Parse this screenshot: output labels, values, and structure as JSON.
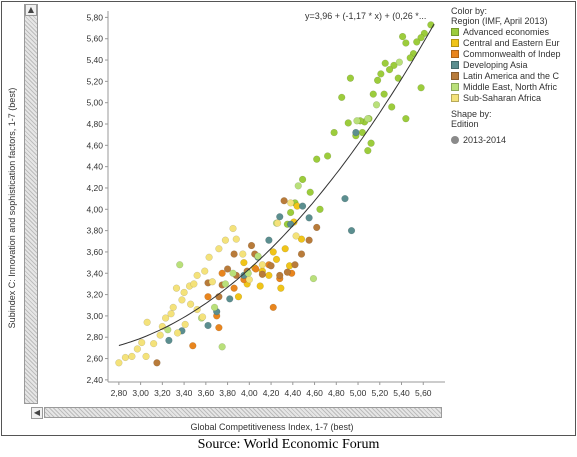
{
  "legend": {
    "color_title": "Color by:",
    "color_subtitle": "Region (IMF, April 2013)",
    "items": [
      {
        "label": "Advanced economies",
        "color": "#9ccc3c"
      },
      {
        "label": "Central and Eastern Eur",
        "color": "#f0c419"
      },
      {
        "label": "Commonwealth of Indep",
        "color": "#e8851e"
      },
      {
        "label": "Developing Asia",
        "color": "#5b8e8f"
      },
      {
        "label": "Latin America and the C",
        "color": "#b87b3a"
      },
      {
        "label": "Middle East, North Afric",
        "color": "#b9e07a"
      },
      {
        "label": "Sub-Saharan Africa",
        "color": "#f4e27a"
      }
    ],
    "shape_title": "Shape by:",
    "shape_subtitle": "Edition",
    "shape_items": [
      "2013-2014"
    ]
  },
  "trend_equation": "y=3,96 + (-1,17 * x) + (0,26 *...",
  "source": "Source: World Economic Forum",
  "chart_data": {
    "type": "scatter",
    "xlabel": "Global Competitiveness Index, 1-7 (best)",
    "ylabel": "Subindex C: Innovation and sophistication factors, 1-7 (best)",
    "xlim": [
      2.7,
      5.8
    ],
    "ylim": [
      2.38,
      5.86
    ],
    "xticks": [
      2.8,
      3.0,
      3.2,
      3.4,
      3.6,
      3.8,
      4.0,
      4.2,
      4.4,
      4.6,
      4.8,
      5.0,
      5.2,
      5.4,
      5.6
    ],
    "xtick_labels": [
      "2,80",
      "3,00",
      "3,20",
      "3,40",
      "3,60",
      "3,80",
      "4,00",
      "4,20",
      "4,40",
      "4,60",
      "4,80",
      "5,00",
      "5,20",
      "5,40",
      "5,60"
    ],
    "yticks": [
      2.4,
      2.6,
      2.8,
      3.0,
      3.2,
      3.4,
      3.6,
      3.8,
      4.0,
      4.2,
      4.4,
      4.6,
      4.8,
      5.0,
      5.2,
      5.4,
      5.6,
      5.8
    ],
    "ytick_labels": [
      "2,40",
      "2,60",
      "2,80",
      "3,00",
      "3,20",
      "3,40",
      "3,60",
      "3,80",
      "4,00",
      "4,20",
      "4,40",
      "4,60",
      "4,80",
      "5,00",
      "5,20",
      "5,40",
      "5,60",
      "5,80"
    ],
    "trendline": {
      "type": "polynomial",
      "coefficients": [
        3.96,
        -1.17,
        0.26
      ]
    },
    "grid": false,
    "legend_position": "right",
    "series": [
      {
        "name": "Advanced economies",
        "color": "#9ccc3c",
        "points": [
          [
            5.67,
            5.73
          ],
          [
            5.61,
            5.65
          ],
          [
            5.58,
            5.61
          ],
          [
            5.54,
            5.57
          ],
          [
            5.51,
            5.46
          ],
          [
            5.48,
            5.42
          ],
          [
            5.44,
            5.56
          ],
          [
            5.41,
            5.62
          ],
          [
            5.37,
            5.23
          ],
          [
            5.33,
            5.35
          ],
          [
            5.29,
            5.31
          ],
          [
            5.25,
            5.37
          ],
          [
            5.21,
            5.27
          ],
          [
            5.18,
            5.21
          ],
          [
            5.14,
            5.08
          ],
          [
            5.1,
            4.85
          ],
          [
            5.06,
            4.82
          ],
          [
            5.04,
            4.72
          ],
          [
            5.02,
            4.83
          ],
          [
            4.98,
            4.69
          ],
          [
            4.93,
            5.23
          ],
          [
            4.91,
            4.81
          ],
          [
            4.85,
            5.05
          ],
          [
            4.78,
            4.72
          ],
          [
            4.72,
            4.5
          ],
          [
            4.62,
            4.47
          ],
          [
            4.56,
            4.16
          ],
          [
            4.49,
            4.28
          ],
          [
            4.42,
            4.06
          ],
          [
            4.38,
            3.97
          ],
          [
            5.58,
            5.14
          ],
          [
            5.44,
            4.85
          ],
          [
            5.09,
            4.55
          ],
          [
            5.12,
            4.62
          ],
          [
            4.65,
            4.0
          ],
          [
            4.35,
            3.86
          ],
          [
            5.31,
            4.96
          ],
          [
            5.24,
            5.08
          ]
        ]
      },
      {
        "name": "Central and Eastern Eur",
        "color": "#f0c419",
        "points": [
          [
            4.41,
            3.88
          ],
          [
            4.33,
            3.63
          ],
          [
            4.25,
            3.53
          ],
          [
            4.18,
            3.38
          ],
          [
            4.12,
            3.42
          ],
          [
            4.05,
            3.45
          ],
          [
            3.98,
            3.3
          ],
          [
            3.9,
            3.18
          ],
          [
            4.48,
            3.72
          ],
          [
            4.37,
            3.47
          ],
          [
            4.29,
            3.26
          ],
          [
            4.22,
            3.6
          ],
          [
            3.95,
            3.5
          ],
          [
            4.44,
            4.03
          ],
          [
            4.1,
            3.28
          ]
        ]
      },
      {
        "name": "Commonwealth of Indep",
        "color": "#e8851e",
        "points": [
          [
            4.28,
            3.35
          ],
          [
            4.18,
            3.48
          ],
          [
            4.06,
            3.44
          ],
          [
            3.95,
            3.34
          ],
          [
            3.86,
            3.26
          ],
          [
            3.75,
            3.4
          ],
          [
            3.62,
            3.18
          ],
          [
            3.48,
            2.72
          ],
          [
            3.7,
            3.0
          ],
          [
            3.72,
            2.89
          ],
          [
            4.22,
            3.08
          ],
          [
            4.39,
            3.4
          ]
        ]
      },
      {
        "name": "Developing Asia",
        "color": "#5b8e8f",
        "points": [
          [
            4.94,
            3.8
          ],
          [
            4.88,
            4.1
          ],
          [
            4.55,
            3.92
          ],
          [
            4.38,
            3.86
          ],
          [
            4.28,
            3.93
          ],
          [
            4.18,
            3.71
          ],
          [
            4.08,
            3.55
          ],
          [
            3.95,
            3.38
          ],
          [
            3.82,
            3.16
          ],
          [
            3.7,
            3.04
          ],
          [
            3.62,
            2.91
          ],
          [
            3.38,
            2.86
          ],
          [
            3.26,
            2.77
          ],
          [
            4.49,
            4.03
          ],
          [
            4.98,
            4.72
          ]
        ]
      },
      {
        "name": "Latin America and the C",
        "color": "#b87b3a",
        "points": [
          [
            4.62,
            3.83
          ],
          [
            4.55,
            3.71
          ],
          [
            4.48,
            3.58
          ],
          [
            4.42,
            3.48
          ],
          [
            4.35,
            3.41
          ],
          [
            4.28,
            3.38
          ],
          [
            4.2,
            3.47
          ],
          [
            4.12,
            3.39
          ],
          [
            4.05,
            3.58
          ],
          [
            3.98,
            3.42
          ],
          [
            3.88,
            3.38
          ],
          [
            3.8,
            3.44
          ],
          [
            3.75,
            3.29
          ],
          [
            3.72,
            3.18
          ],
          [
            3.86,
            3.58
          ],
          [
            4.02,
            3.66
          ],
          [
            3.15,
            2.56
          ],
          [
            3.62,
            3.31
          ],
          [
            4.32,
            4.08
          ]
        ]
      },
      {
        "name": "Middle East, North Afric",
        "color": "#b9e07a",
        "points": [
          [
            5.38,
            5.38
          ],
          [
            5.17,
            4.98
          ],
          [
            5.09,
            4.85
          ],
          [
            4.99,
            4.83
          ],
          [
            4.45,
            4.22
          ],
          [
            4.25,
            3.87
          ],
          [
            4.08,
            3.56
          ],
          [
            3.99,
            3.4
          ],
          [
            3.85,
            3.4
          ],
          [
            3.78,
            3.3
          ],
          [
            3.68,
            3.08
          ],
          [
            3.56,
            2.98
          ],
          [
            3.75,
            2.71
          ],
          [
            4.59,
            3.35
          ],
          [
            3.36,
            3.48
          ],
          [
            3.25,
            2.87
          ]
        ]
      },
      {
        "name": "Sub-Saharan Africa",
        "color": "#f4e27a",
        "points": [
          [
            4.43,
            3.75
          ],
          [
            4.38,
            4.06
          ],
          [
            4.26,
            3.87
          ],
          [
            3.94,
            3.58
          ],
          [
            3.85,
            3.82
          ],
          [
            3.78,
            3.71
          ],
          [
            3.72,
            3.63
          ],
          [
            3.63,
            3.55
          ],
          [
            3.59,
            3.42
          ],
          [
            3.52,
            3.38
          ],
          [
            3.45,
            3.28
          ],
          [
            3.4,
            3.22
          ],
          [
            3.38,
            3.15
          ],
          [
            3.33,
            3.26
          ],
          [
            3.3,
            3.08
          ],
          [
            3.28,
            3.02
          ],
          [
            3.23,
            2.98
          ],
          [
            3.2,
            2.9
          ],
          [
            3.18,
            2.82
          ],
          [
            3.12,
            2.74
          ],
          [
            3.06,
            2.94
          ],
          [
            3.01,
            2.75
          ],
          [
            2.97,
            2.69
          ],
          [
            2.92,
            2.62
          ],
          [
            2.86,
            2.61
          ],
          [
            2.8,
            2.56
          ],
          [
            3.46,
            3.11
          ],
          [
            3.52,
            3.06
          ],
          [
            3.57,
            2.99
          ],
          [
            3.41,
            2.92
          ],
          [
            3.34,
            2.84
          ],
          [
            3.66,
            3.32
          ],
          [
            3.88,
            3.72
          ],
          [
            4.12,
            3.48
          ],
          [
            4.0,
            3.34
          ],
          [
            3.49,
            3.3
          ],
          [
            3.05,
            2.62
          ]
        ]
      }
    ]
  }
}
